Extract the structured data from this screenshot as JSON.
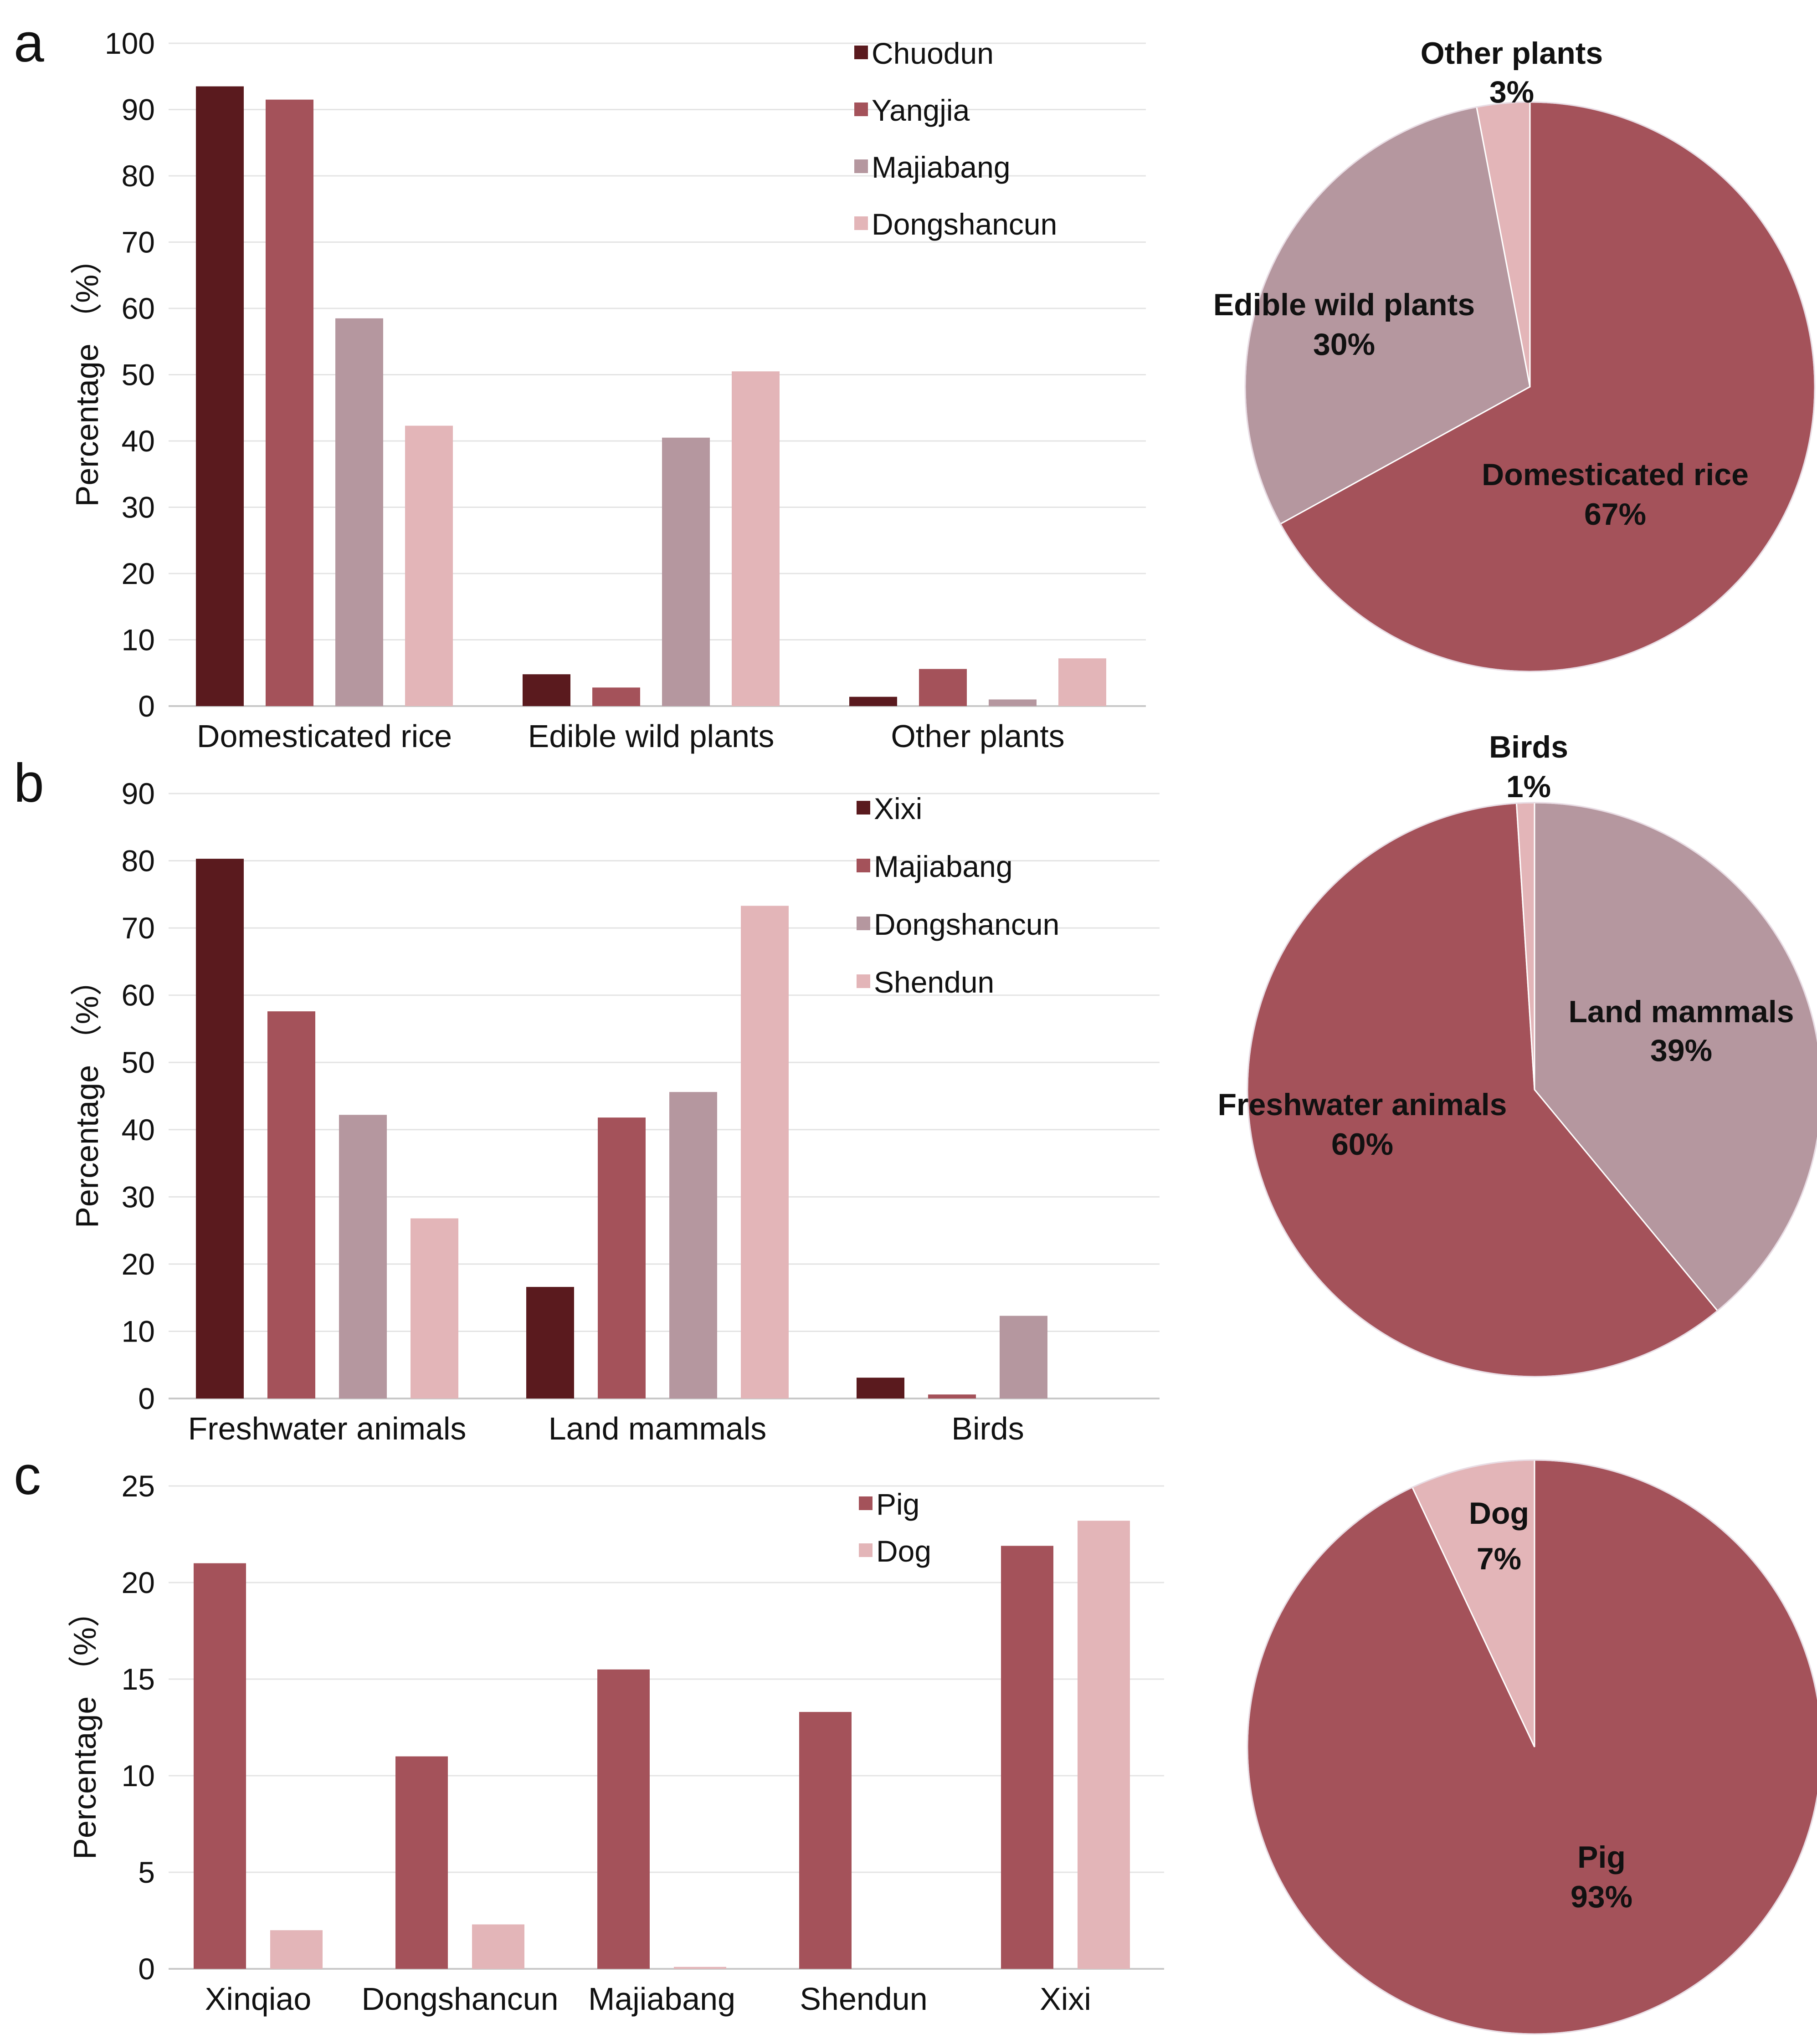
{
  "chart_data": [
    {
      "panel": "a",
      "type": "bar",
      "ylabel": "Percentage （%）",
      "ylim": [
        0,
        100
      ],
      "yticks": [
        0,
        10,
        20,
        30,
        40,
        50,
        60,
        70,
        80,
        90,
        100
      ],
      "grid": true,
      "legend_position": "top-right",
      "categories": [
        "Domesticated rice",
        "Edible wild plants",
        "Other plants"
      ],
      "series": [
        {
          "name": "Chuodun",
          "color": "#5a1a1e",
          "values": [
            93.5,
            4.8,
            1.4
          ]
        },
        {
          "name": "Yangjia",
          "color": "#a4525a",
          "values": [
            91.5,
            2.8,
            5.6
          ]
        },
        {
          "name": "Majiabang",
          "color": "#b5979f",
          "values": [
            58.5,
            40.5,
            1.0
          ]
        },
        {
          "name": "Dongshancun",
          "color": "#e3b5b8",
          "values": [
            42.3,
            50.5,
            7.2
          ]
        }
      ]
    },
    {
      "panel": "a",
      "type": "pie",
      "slices": [
        {
          "label": "Domesticated rice",
          "pct": "67%",
          "value": 67,
          "color": "#a4525a"
        },
        {
          "label": "Edible wild plants",
          "pct": "30%",
          "value": 30,
          "color": "#b5979f"
        },
        {
          "label": "Other plants",
          "pct": "3%",
          "value": 3,
          "color": "#e3b5b8"
        }
      ]
    },
    {
      "panel": "b",
      "type": "bar",
      "ylabel": "Percentage （%）",
      "ylim": [
        0,
        90
      ],
      "yticks": [
        0,
        10,
        20,
        30,
        40,
        50,
        60,
        70,
        80,
        90
      ],
      "grid": true,
      "legend_position": "top-right",
      "categories": [
        "Freshwater animals",
        "Land mammals",
        "Birds"
      ],
      "series": [
        {
          "name": "Xixi",
          "color": "#5a1a1e",
          "values": [
            80.3,
            16.6,
            3.1
          ]
        },
        {
          "name": "Majiabang",
          "color": "#a4525a",
          "values": [
            57.6,
            41.8,
            0.6
          ]
        },
        {
          "name": "Dongshancun",
          "color": "#b5979f",
          "values": [
            42.2,
            45.6,
            12.3
          ]
        },
        {
          "name": "Shendun",
          "color": "#e3b5b8",
          "values": [
            26.8,
            73.3,
            0
          ]
        }
      ]
    },
    {
      "panel": "b",
      "type": "pie",
      "slices": [
        {
          "label": "Land mammals",
          "pct": "39%",
          "value": 39,
          "color": "#b5979f"
        },
        {
          "label": "Freshwater animals",
          "pct": "60%",
          "value": 60,
          "color": "#a4525a"
        },
        {
          "label": "Birds",
          "pct": "1%",
          "value": 1,
          "color": "#e3b5b8"
        }
      ]
    },
    {
      "panel": "c",
      "type": "bar",
      "ylabel": "Percentage （%）",
      "ylim": [
        0,
        25
      ],
      "yticks": [
        0,
        5,
        10,
        15,
        20,
        25
      ],
      "grid": true,
      "legend_position": "top-right",
      "categories": [
        "Xinqiao",
        "Dongshancun",
        "Majiabang",
        "Shendun",
        "Xixi"
      ],
      "series": [
        {
          "name": "Pig",
          "color": "#a4525a",
          "values": [
            21.0,
            11.0,
            15.5,
            13.3,
            21.9
          ]
        },
        {
          "name": "Dog",
          "color": "#e3b5b8",
          "values": [
            2.0,
            2.3,
            0.1,
            0,
            23.2
          ]
        }
      ]
    },
    {
      "panel": "c",
      "type": "pie",
      "slices": [
        {
          "label": "Pig",
          "pct": "93%",
          "value": 93,
          "color": "#a4525a"
        },
        {
          "label": "Dog",
          "pct": "7%",
          "value": 7,
          "color": "#e3b5b8"
        }
      ]
    }
  ]
}
